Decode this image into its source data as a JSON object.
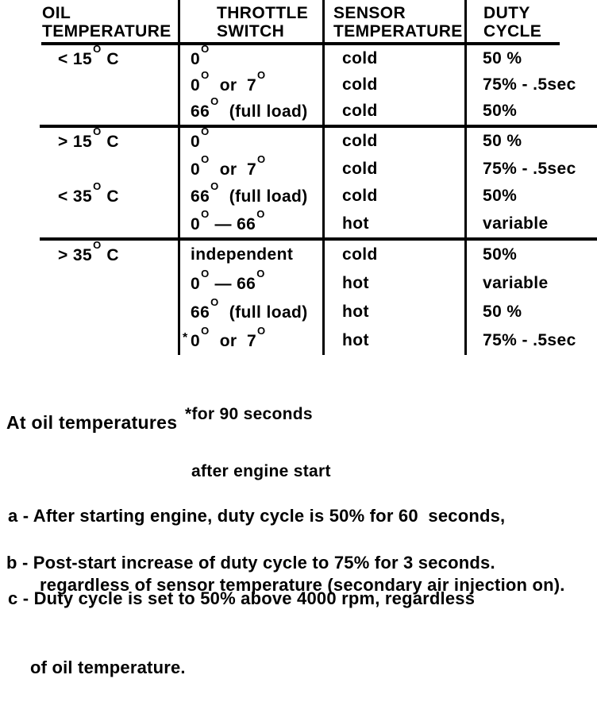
{
  "colors": {
    "ink": "#000000",
    "paper": "#ffffff"
  },
  "table": {
    "headers": [
      {
        "line1": "OIL",
        "line2": "TEMPERATURE"
      },
      {
        "line1": "THROTTLE",
        "line2": "SWITCH"
      },
      {
        "line1": "SENSOR",
        "line2": "TEMPERATURE"
      },
      {
        "line1": "DUTY",
        "line2": "CYCLE"
      }
    ],
    "groups": [
      {
        "oil_range": "< 15° C",
        "rows": [
          {
            "oil": "< 15° C",
            "throttle": "0°",
            "sensor": "cold",
            "duty": "50 %"
          },
          {
            "oil": "",
            "throttle": "0°  or  7°",
            "sensor": "cold",
            "duty": "75% - .5sec"
          },
          {
            "oil": "",
            "throttle": "66°  (full load)",
            "sensor": "cold",
            "duty": "50%"
          }
        ]
      },
      {
        "oil_range": "> 15° C and < 35° C",
        "rows": [
          {
            "oil": "> 15° C",
            "throttle": "0°",
            "sensor": "cold",
            "duty": "50 %"
          },
          {
            "oil": "",
            "throttle": "0°  or  7°",
            "sensor": "cold",
            "duty": "75% - .5sec"
          },
          {
            "oil": "< 35° C",
            "throttle": "66°  (full load)",
            "sensor": "cold",
            "duty": "50%"
          },
          {
            "oil": "",
            "throttle": "0° — 66°",
            "sensor": "hot",
            "duty": "variable"
          }
        ]
      },
      {
        "oil_range": "> 35° C",
        "rows": [
          {
            "oil": "> 35° C",
            "throttle": "independent",
            "sensor": "cold",
            "duty": "50%"
          },
          {
            "oil": "",
            "throttle": "0° — 66°",
            "sensor": "hot",
            "duty": "variable"
          },
          {
            "oil": "",
            "throttle": "66°  (full load)",
            "sensor": "hot",
            "duty": "50 %"
          },
          {
            "oil": "",
            "mark": "*",
            "throttle": "0°  or  7°",
            "sensor": "hot",
            "duty": "75% - .5sec"
          }
        ]
      }
    ],
    "footnote": {
      "line1": "*for 90 seconds",
      "line2": "after engine start"
    }
  },
  "notes": {
    "title": "At oil temperatures",
    "items": [
      {
        "line1": "a - After starting engine, duty cycle is 50% for 60  seconds,",
        "line2": "regardless of sensor temperature (secondary air injection on)."
      },
      {
        "line1": "b - Post-start increase of duty cycle to 75% for 3 seconds."
      },
      {
        "line1": "c - Duty cycle is set to 50% above 4000 rpm, regardless",
        "line2": "of oil temperature."
      }
    ]
  }
}
